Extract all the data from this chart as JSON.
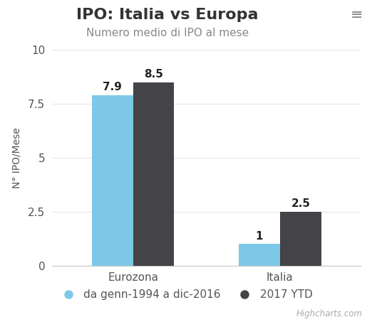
{
  "title": "IPO: Italia vs Europa",
  "subtitle": "Numero medio di IPO al mese",
  "categories": [
    "Eurozona",
    "Italia"
  ],
  "series": [
    {
      "name": "da genn-1994 a dic-2016",
      "values": [
        7.9,
        1.0
      ],
      "color": "#7dc8e8"
    },
    {
      "name": "2017 YTD",
      "values": [
        8.5,
        2.5
      ],
      "color": "#434348"
    }
  ],
  "ylabel": "N° IPO/Mese",
  "ylim": [
    0,
    10
  ],
  "ytick_vals": [
    0,
    2.5,
    5,
    7.5,
    10
  ],
  "ytick_labels": [
    "0",
    "2.5",
    "5",
    "7.5",
    "10"
  ],
  "bar_width": 0.28,
  "background_color": "#ffffff",
  "title_color": "#333333",
  "subtitle_color": "#888888",
  "label_color": "#222222",
  "axis_color": "#cccccc",
  "grid_color": "#e6e6e6",
  "watermark": "Highcharts.com",
  "title_fontsize": 16,
  "subtitle_fontsize": 11,
  "ylabel_fontsize": 10,
  "tick_fontsize": 11,
  "bar_label_fontsize": 11,
  "legend_fontsize": 11
}
